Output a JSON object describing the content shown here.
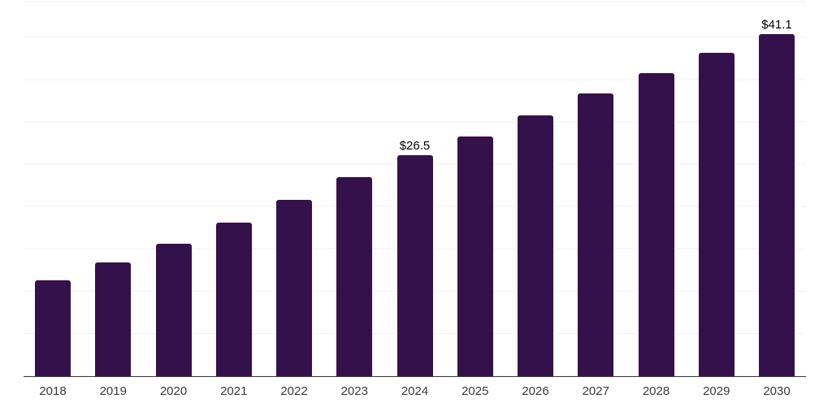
{
  "chart_data": {
    "type": "bar",
    "categories": [
      "2018",
      "2019",
      "2020",
      "2021",
      "2022",
      "2023",
      "2024",
      "2025",
      "2026",
      "2027",
      "2028",
      "2029",
      "2030"
    ],
    "values": [
      11.5,
      13.6,
      15.9,
      18.4,
      21.2,
      23.9,
      26.5,
      28.8,
      31.3,
      34.0,
      36.4,
      38.8,
      41.1
    ],
    "data_labels": [
      "",
      "",
      "",
      "",
      "",
      "",
      "$26.5",
      "",
      "",
      "",
      "",
      "",
      "$41.1"
    ],
    "title": "",
    "xlabel": "",
    "ylabel": "",
    "ylim": [
      0,
      45
    ],
    "gridline_step": 5,
    "grid": "horizontal-only",
    "legend": "none",
    "y_tick_labels_visible": false,
    "colors": {
      "bar": "#35114B",
      "axis_line": "#3a3a3a",
      "gridline": "#f2f2f2",
      "value_label": "#000000",
      "tick_label": "#3a3a3a",
      "background": "#ffffff"
    }
  }
}
